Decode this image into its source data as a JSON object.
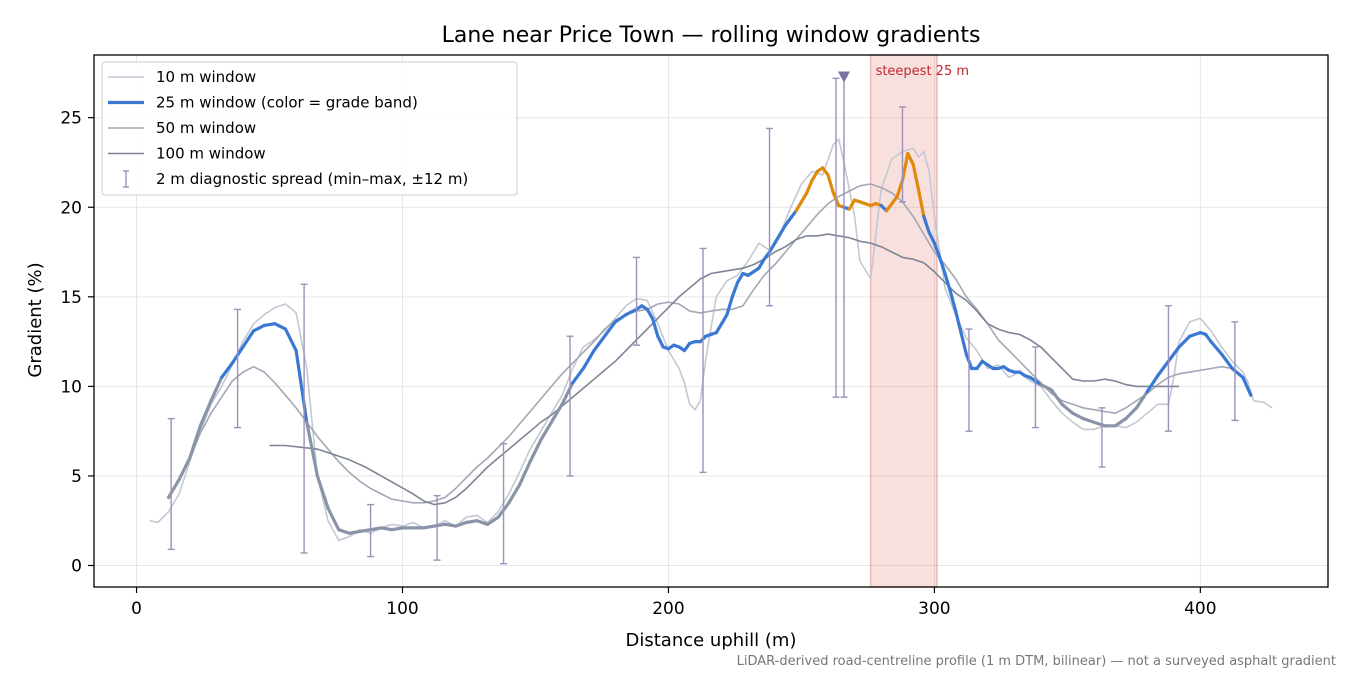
{
  "chart_data": {
    "type": "line",
    "title": "Lane near Price Town — rolling window gradients",
    "xlabel": "Distance uphill (m)",
    "ylabel": "Gradient (%)",
    "xlim": [
      -16,
      448
    ],
    "ylim": [
      -1.2,
      28.5
    ],
    "xticks": [
      0,
      100,
      200,
      300,
      400
    ],
    "yticks": [
      0,
      5,
      10,
      15,
      20,
      25
    ],
    "grid": true,
    "legend_position": "top-left",
    "footnote": "LiDAR-derived road-centreline profile (1 m DTM, bilinear) — not a surveyed asphalt gradient",
    "highlight": {
      "label": "steepest 25 m",
      "x_range": [
        276,
        301
      ],
      "marker_x": 266,
      "marker_y": 27.3,
      "color": "#d9534f"
    },
    "colors": {
      "band_low": "#8a94a8",
      "band_mid": "#3a78d4",
      "band_high": "#e08a0b",
      "w10": "#c3c8d3",
      "w50": "#a3a7b6",
      "w100": "#7d8597",
      "errorbar": "#9c91b8"
    },
    "legend": [
      {
        "label": "10 m window",
        "style": "w10"
      },
      {
        "label": "25 m window (color = grade band)",
        "style": "w25"
      },
      {
        "label": "50 m window",
        "style": "w50"
      },
      {
        "label": "100 m window",
        "style": "w100"
      },
      {
        "label": "2 m diagnostic spread (min–max, ±12 m)",
        "style": "err"
      }
    ],
    "band_thresholds": [
      10,
      20
    ],
    "series": [
      {
        "name": "10 m window",
        "x": [
          5,
          8,
          12,
          16,
          20,
          24,
          28,
          32,
          36,
          40,
          44,
          48,
          52,
          56,
          60,
          64,
          66,
          68,
          72,
          76,
          80,
          84,
          88,
          92,
          96,
          100,
          104,
          108,
          112,
          116,
          120,
          124,
          128,
          132,
          136,
          140,
          144,
          148,
          152,
          156,
          160,
          164,
          168,
          172,
          176,
          180,
          184,
          188,
          192,
          196,
          200,
          204,
          206,
          208,
          210,
          212,
          214,
          218,
          222,
          226,
          230,
          234,
          238,
          242,
          246,
          250,
          254,
          258,
          262,
          264,
          266,
          268,
          270,
          272,
          276,
          280,
          284,
          288,
          292,
          294,
          296,
          298,
          300,
          304,
          308,
          312,
          316,
          320,
          324,
          328,
          332,
          336,
          340,
          344,
          348,
          352,
          356,
          360,
          364,
          368,
          372,
          376,
          380,
          384,
          388,
          390,
          392,
          396,
          400,
          404,
          408,
          412,
          416,
          418,
          420,
          424,
          427
        ],
        "y": [
          2.5,
          2.4,
          3.0,
          4.0,
          5.8,
          7.5,
          9.0,
          10.0,
          11.2,
          12.5,
          13.5,
          14.0,
          14.4,
          14.6,
          14.1,
          11.0,
          8.0,
          5.0,
          2.5,
          1.4,
          1.6,
          2.0,
          1.8,
          2.1,
          2.3,
          2.2,
          2.4,
          2.1,
          2.2,
          2.5,
          2.2,
          2.7,
          2.8,
          2.4,
          3.0,
          4.0,
          5.2,
          6.5,
          7.5,
          8.5,
          9.5,
          11.0,
          12.2,
          12.6,
          13.1,
          13.8,
          14.5,
          14.9,
          14.8,
          13.5,
          12.0,
          11.0,
          10.2,
          9.0,
          8.7,
          9.2,
          11.5,
          15.0,
          15.9,
          16.2,
          17.0,
          18.0,
          17.6,
          18.5,
          20.0,
          21.3,
          22.0,
          21.8,
          23.5,
          23.8,
          22.5,
          21.0,
          19.5,
          17.0,
          16.0,
          21.0,
          22.7,
          23.1,
          23.3,
          22.8,
          23.1,
          22.0,
          19.5,
          15.5,
          14.0,
          12.7,
          12.0,
          11.0,
          11.2,
          10.5,
          10.8,
          10.3,
          10.0,
          9.2,
          8.5,
          8.0,
          7.6,
          7.6,
          7.8,
          7.8,
          7.7,
          8.0,
          8.5,
          9.0,
          9.0,
          10.5,
          12.5,
          13.6,
          13.8,
          13.1,
          12.2,
          11.4,
          10.8,
          10.2,
          9.2,
          9.1,
          8.8
        ]
      },
      {
        "name": "25 m window",
        "x": [
          12,
          16,
          20,
          24,
          28,
          32,
          36,
          40,
          44,
          48,
          52,
          56,
          60,
          64,
          66,
          68,
          72,
          76,
          80,
          84,
          88,
          92,
          96,
          100,
          104,
          108,
          112,
          116,
          120,
          124,
          128,
          132,
          136,
          140,
          144,
          148,
          152,
          156,
          160,
          164,
          168,
          172,
          176,
          180,
          184,
          188,
          190,
          192,
          194,
          196,
          198,
          200,
          202,
          204,
          206,
          208,
          210,
          212,
          214,
          216,
          218,
          220,
          222,
          224,
          226,
          228,
          230,
          232,
          234,
          236,
          238,
          240,
          242,
          244,
          246,
          248,
          250,
          252,
          254,
          256,
          258,
          260,
          262,
          264,
          266,
          268,
          270,
          272,
          274,
          276,
          278,
          280,
          282,
          284,
          286,
          288,
          290,
          292,
          294,
          296,
          298,
          300,
          302,
          304,
          306,
          308,
          310,
          312,
          314,
          316,
          318,
          320,
          322,
          324,
          326,
          328,
          330,
          332,
          334,
          336,
          338,
          340,
          344,
          348,
          352,
          356,
          360,
          364,
          368,
          372,
          376,
          380,
          384,
          388,
          392,
          396,
          400,
          402,
          404,
          408,
          412,
          416,
          419
        ],
        "y": [
          3.8,
          4.8,
          6.0,
          7.8,
          9.2,
          10.5,
          11.3,
          12.2,
          13.1,
          13.4,
          13.5,
          13.2,
          12.0,
          8.0,
          6.5,
          5.0,
          3.2,
          2.0,
          1.8,
          1.9,
          2.0,
          2.1,
          2.0,
          2.1,
          2.1,
          2.1,
          2.2,
          2.3,
          2.2,
          2.4,
          2.5,
          2.3,
          2.7,
          3.5,
          4.5,
          5.8,
          7.0,
          8.0,
          9.0,
          10.2,
          11.0,
          12.0,
          12.8,
          13.6,
          14.0,
          14.3,
          14.5,
          14.3,
          13.8,
          12.8,
          12.2,
          12.1,
          12.3,
          12.2,
          12.0,
          12.4,
          12.5,
          12.5,
          12.8,
          12.9,
          13.0,
          13.5,
          14.0,
          15.0,
          15.8,
          16.3,
          16.2,
          16.4,
          16.6,
          17.1,
          17.5,
          18.0,
          18.5,
          19.0,
          19.4,
          19.8,
          20.3,
          20.8,
          21.5,
          22.0,
          22.2,
          21.8,
          20.8,
          20.1,
          20.0,
          19.9,
          20.4,
          20.3,
          20.2,
          20.1,
          20.2,
          20.1,
          19.8,
          20.2,
          20.6,
          21.5,
          23.0,
          22.4,
          21.0,
          19.5,
          18.6,
          18.0,
          17.2,
          16.3,
          15.3,
          14.2,
          13.0,
          11.8,
          11.0,
          11.0,
          11.4,
          11.2,
          11.0,
          11.0,
          11.1,
          10.9,
          10.8,
          10.8,
          10.6,
          10.5,
          10.3,
          10.1,
          9.8,
          9.0,
          8.5,
          8.2,
          8.0,
          7.8,
          7.8,
          8.2,
          8.8,
          9.7,
          10.6,
          11.4,
          12.2,
          12.8,
          13.0,
          12.9,
          12.5,
          11.8,
          11.0,
          10.5,
          9.5
        ]
      },
      {
        "name": "50 m window",
        "x": [
          12,
          16,
          20,
          24,
          28,
          32,
          36,
          40,
          44,
          48,
          52,
          56,
          60,
          64,
          68,
          72,
          76,
          80,
          84,
          88,
          92,
          96,
          100,
          104,
          108,
          112,
          116,
          120,
          124,
          128,
          132,
          136,
          140,
          144,
          148,
          152,
          156,
          160,
          164,
          168,
          172,
          176,
          180,
          184,
          188,
          192,
          196,
          200,
          204,
          208,
          212,
          216,
          220,
          224,
          228,
          232,
          236,
          240,
          244,
          248,
          252,
          256,
          260,
          264,
          268,
          272,
          276,
          280,
          284,
          288,
          292,
          296,
          300,
          304,
          308,
          312,
          316,
          320,
          324,
          328,
          332,
          336,
          340,
          344,
          348,
          352,
          356,
          360,
          364,
          368,
          372,
          376,
          380,
          384,
          388,
          392,
          396,
          400,
          404,
          408,
          412
        ],
        "y": [
          3.7,
          4.8,
          6.0,
          7.4,
          8.5,
          9.4,
          10.3,
          10.8,
          11.1,
          10.8,
          10.2,
          9.5,
          8.8,
          8.0,
          7.2,
          6.5,
          5.8,
          5.2,
          4.7,
          4.3,
          4.0,
          3.7,
          3.6,
          3.5,
          3.5,
          3.6,
          3.8,
          4.3,
          4.9,
          5.5,
          6.0,
          6.6,
          7.2,
          7.9,
          8.6,
          9.3,
          10.0,
          10.7,
          11.3,
          11.9,
          12.5,
          13.2,
          13.7,
          14.0,
          14.2,
          14.3,
          14.6,
          14.7,
          14.6,
          14.2,
          14.1,
          14.2,
          14.3,
          14.3,
          14.5,
          15.4,
          16.2,
          16.8,
          17.5,
          18.2,
          18.9,
          19.6,
          20.2,
          20.6,
          20.9,
          21.2,
          21.3,
          21.1,
          20.8,
          20.3,
          19.5,
          18.5,
          17.5,
          16.8,
          16.0,
          15.0,
          14.3,
          13.5,
          12.6,
          12.0,
          11.4,
          10.8,
          10.2,
          9.6,
          9.2,
          9.0,
          8.8,
          8.7,
          8.6,
          8.5,
          8.8,
          9.2,
          9.6,
          10.1,
          10.5,
          10.7,
          10.8,
          10.9,
          11.0,
          11.1,
          11.0
        ]
      },
      {
        "name": "100 m window",
        "x": [
          50,
          56,
          62,
          68,
          74,
          80,
          86,
          92,
          98,
          104,
          108,
          112,
          116,
          120,
          124,
          128,
          132,
          136,
          140,
          144,
          148,
          152,
          156,
          160,
          164,
          168,
          172,
          176,
          180,
          184,
          188,
          192,
          196,
          200,
          204,
          208,
          212,
          216,
          220,
          224,
          228,
          232,
          236,
          240,
          244,
          248,
          252,
          256,
          260,
          264,
          268,
          272,
          276,
          280,
          284,
          288,
          292,
          296,
          300,
          304,
          308,
          312,
          316,
          320,
          324,
          328,
          332,
          336,
          340,
          344,
          348,
          352,
          356,
          360,
          364,
          368,
          372,
          376,
          380,
          384,
          388,
          392
        ],
        "y": [
          6.7,
          6.7,
          6.6,
          6.5,
          6.2,
          5.9,
          5.5,
          5.0,
          4.5,
          4.0,
          3.6,
          3.4,
          3.5,
          3.8,
          4.3,
          4.9,
          5.5,
          6.0,
          6.5,
          7.0,
          7.5,
          8.0,
          8.4,
          8.9,
          9.4,
          9.9,
          10.4,
          10.9,
          11.4,
          12.0,
          12.6,
          13.2,
          13.8,
          14.4,
          15.0,
          15.5,
          16.0,
          16.3,
          16.4,
          16.5,
          16.6,
          16.8,
          17.1,
          17.5,
          17.8,
          18.2,
          18.4,
          18.4,
          18.5,
          18.4,
          18.3,
          18.1,
          18.0,
          17.8,
          17.5,
          17.2,
          17.1,
          16.9,
          16.4,
          15.8,
          15.2,
          14.8,
          14.2,
          13.5,
          13.2,
          13.0,
          12.9,
          12.6,
          12.2,
          11.6,
          11.0,
          10.4,
          10.3,
          10.3,
          10.4,
          10.3,
          10.1,
          10.0,
          10.0,
          10.0,
          10.0,
          10.0
        ]
      }
    ],
    "diagnostic_spread": [
      {
        "x": 13,
        "min": 0.9,
        "max": 8.2
      },
      {
        "x": 38,
        "min": 7.7,
        "max": 14.3
      },
      {
        "x": 63,
        "min": 0.7,
        "max": 15.7
      },
      {
        "x": 88,
        "min": 0.5,
        "max": 3.4
      },
      {
        "x": 113,
        "min": 0.3,
        "max": 3.9
      },
      {
        "x": 138,
        "min": 0.1,
        "max": 6.8
      },
      {
        "x": 163,
        "min": 5.0,
        "max": 12.8
      },
      {
        "x": 188,
        "min": 12.3,
        "max": 17.2
      },
      {
        "x": 213,
        "min": 5.2,
        "max": 17.7
      },
      {
        "x": 238,
        "min": 14.5,
        "max": 24.4
      },
      {
        "x": 263,
        "min": 9.4,
        "max": 27.2
      },
      {
        "x": 266,
        "min": 9.4,
        "max": 27.3
      },
      {
        "x": 288,
        "min": 20.3,
        "max": 25.6
      },
      {
        "x": 313,
        "min": 7.5,
        "max": 13.2
      },
      {
        "x": 338,
        "min": 7.7,
        "max": 12.2
      },
      {
        "x": 363,
        "min": 5.5,
        "max": 8.8
      },
      {
        "x": 388,
        "min": 7.5,
        "max": 14.5
      },
      {
        "x": 413,
        "min": 8.1,
        "max": 13.6
      }
    ]
  }
}
